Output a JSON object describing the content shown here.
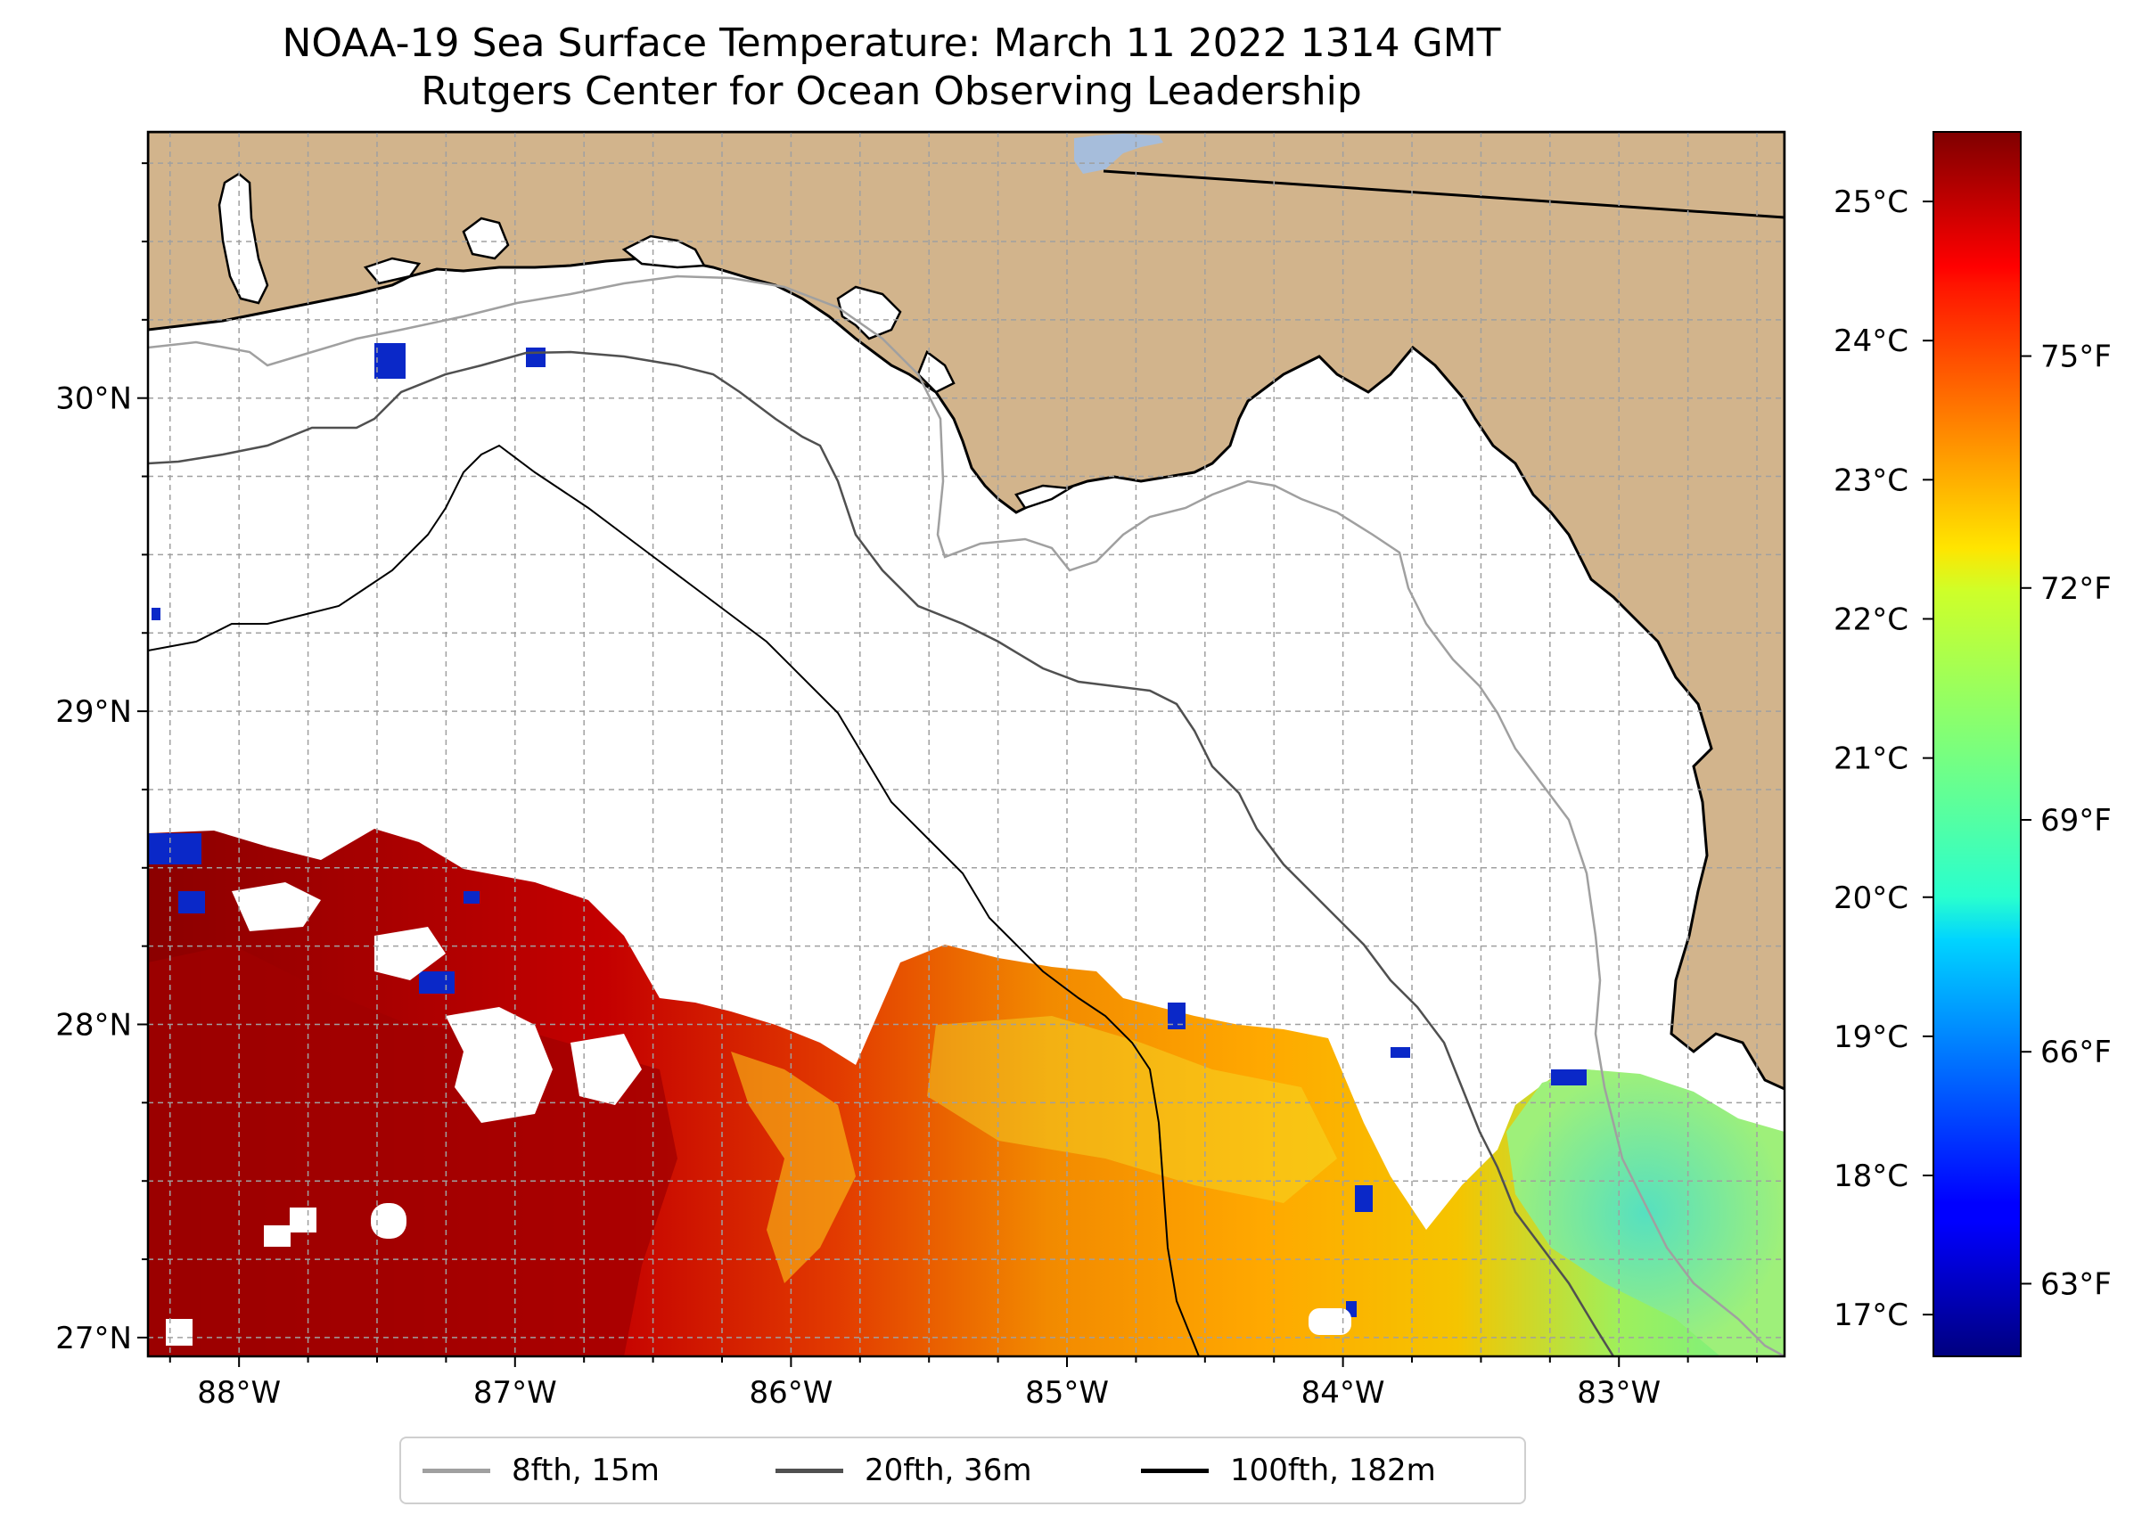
{
  "title": {
    "line1": "NOAA-19 Sea Surface Temperature: March 11 2022 1314 GMT",
    "line2": "Rutgers Center for Ocean Observing Leadership"
  },
  "map": {
    "lon_range": [
      -88.33,
      -82.4
    ],
    "lat_range": [
      26.94,
      30.85
    ],
    "lat_labels": [
      "30°N",
      "29°N",
      "28°N",
      "27°N"
    ],
    "lat_values": [
      30,
      29,
      28,
      27
    ],
    "lon_labels": [
      "88°W",
      "87°W",
      "86°W",
      "85°W",
      "84°W",
      "83°W"
    ],
    "lon_values": [
      -88,
      -87,
      -86,
      -85,
      -84,
      -83
    ],
    "grid_step_deg": 0.25,
    "land_color": "#D2B48C",
    "water_no_data_color": "#FFFFFF",
    "lake_color": "#A6BDDB"
  },
  "colorbar": {
    "colormap": "jet",
    "celsius_range": [
      16.7,
      25.5
    ],
    "celsius_labels": [
      "25°C",
      "24°C",
      "23°C",
      "22°C",
      "21°C",
      "20°C",
      "19°C",
      "18°C",
      "17°C"
    ],
    "celsius_values": [
      25,
      24,
      23,
      22,
      21,
      20,
      19,
      18,
      17
    ],
    "fahrenheit_labels": [
      "75°F",
      "72°F",
      "69°F",
      "66°F",
      "63°F"
    ],
    "fahrenheit_values": [
      75,
      72,
      69,
      66,
      63
    ]
  },
  "legend": [
    {
      "label": "8fth, 15m",
      "color": "#A0A0A0"
    },
    {
      "label": "20fth, 36m",
      "color": "#505050"
    },
    {
      "label": "100fth, 182m",
      "color": "#000000"
    }
  ]
}
